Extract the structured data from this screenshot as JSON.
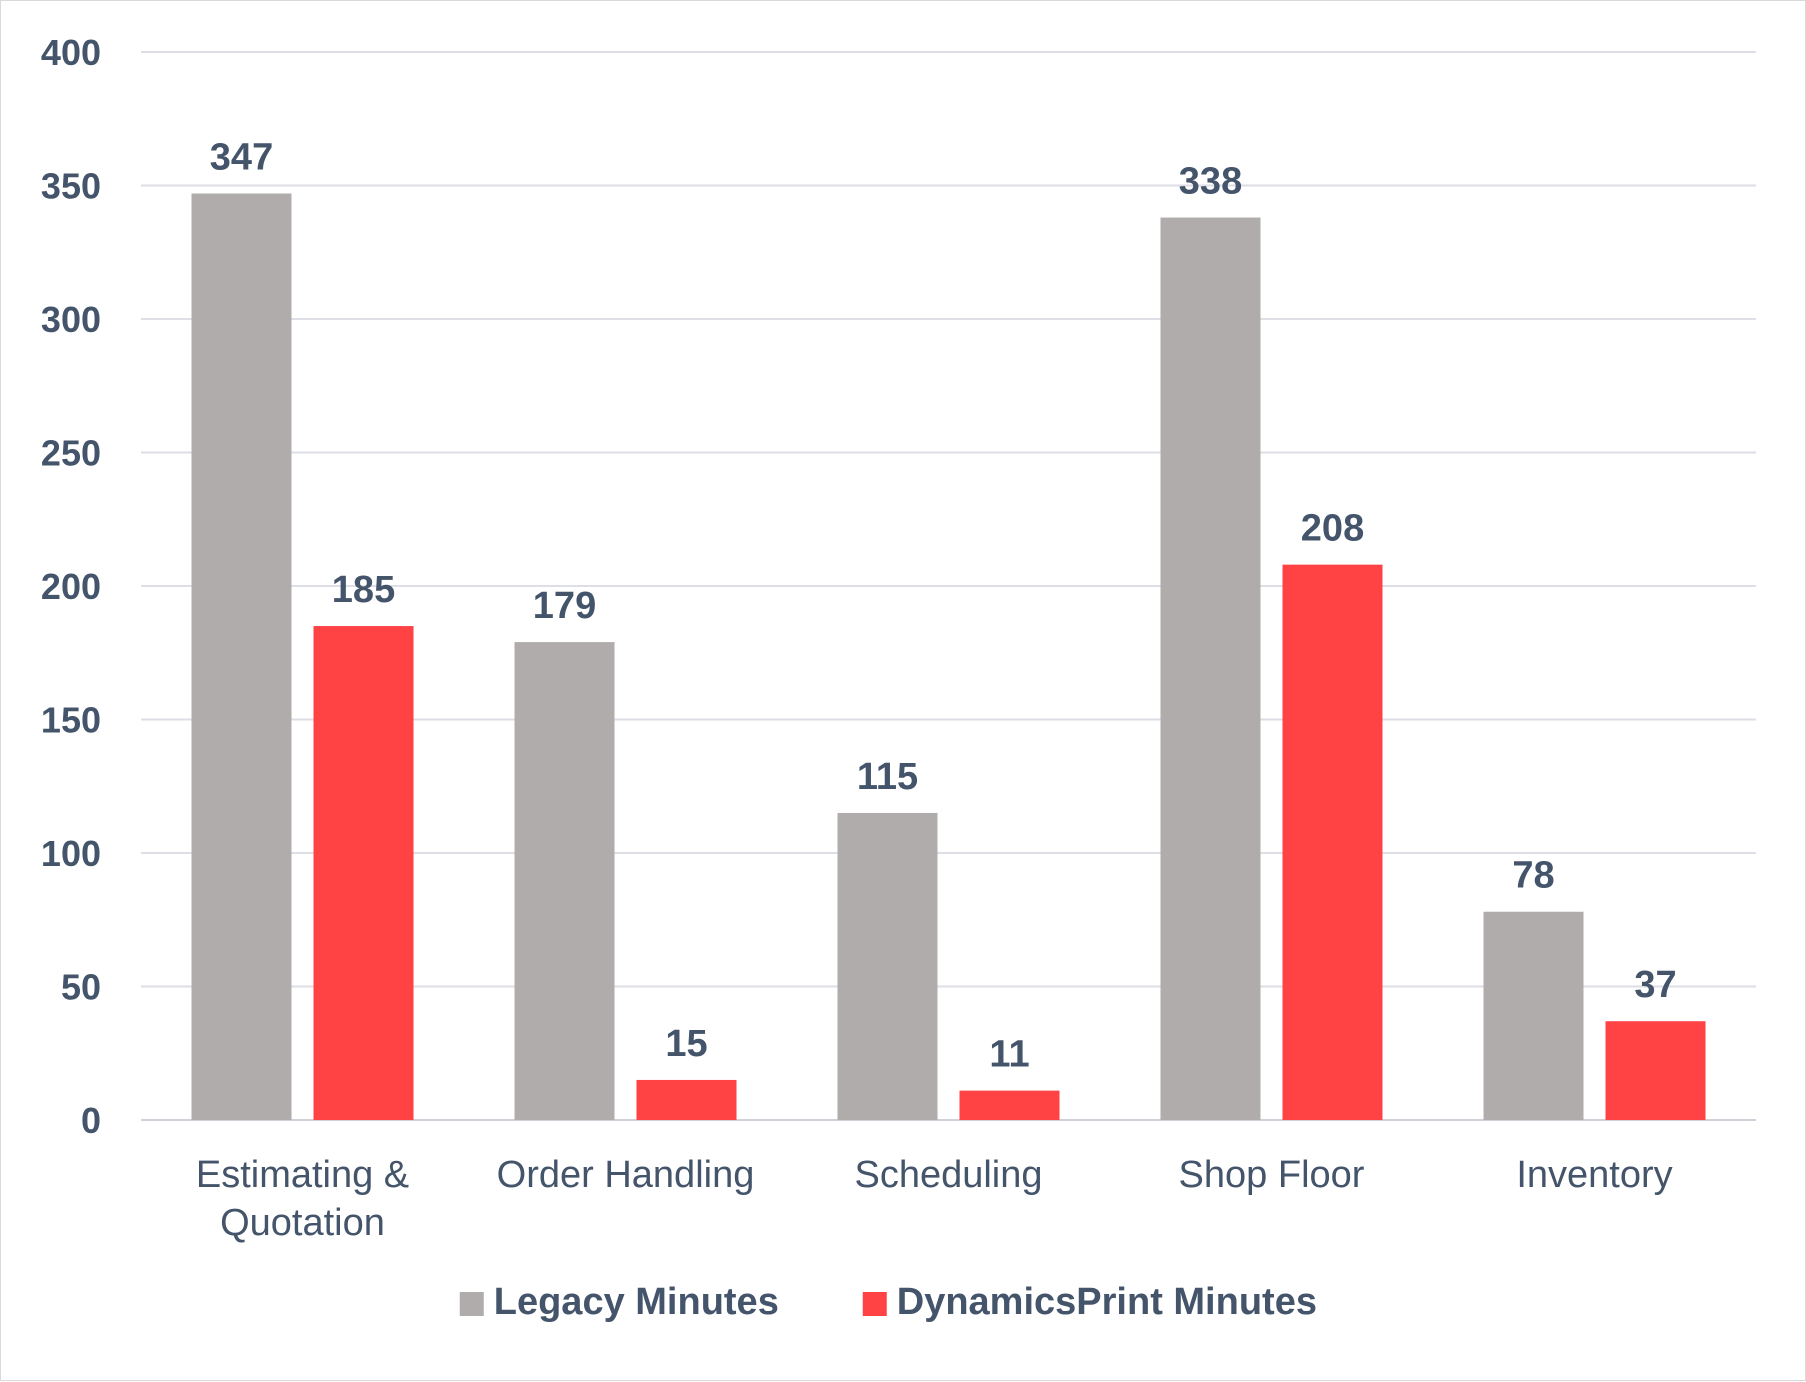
{
  "chart_data": {
    "type": "bar",
    "categories": [
      [
        "Estimating &",
        "Quotation"
      ],
      [
        "Order Handling"
      ],
      [
        "Scheduling"
      ],
      [
        "Shop Floor"
      ],
      [
        "Inventory"
      ]
    ],
    "series": [
      {
        "name": "Legacy Minutes",
        "color": "#b0acab",
        "values": [
          347,
          179,
          115,
          338,
          78
        ]
      },
      {
        "name": "DynamicsPrint Minutes",
        "color": "#ff4244",
        "values": [
          185,
          15,
          11,
          208,
          37
        ]
      }
    ],
    "ylim": [
      0,
      400
    ],
    "yticks": [
      0,
      50,
      100,
      150,
      200,
      250,
      300,
      350,
      400
    ],
    "grid": true,
    "legend_position": "bottom-center",
    "data_labels": true
  }
}
